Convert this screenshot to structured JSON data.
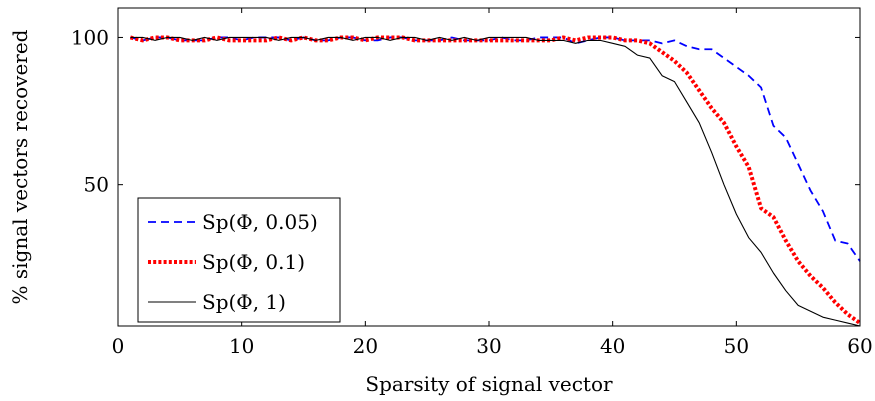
{
  "chart_data": {
    "type": "line",
    "xlabel": "Sparsity of signal vector",
    "ylabel": "% signal vectors recovered",
    "xlim": [
      0,
      60
    ],
    "ylim": [
      2,
      110
    ],
    "xticks": [
      0,
      10,
      20,
      30,
      40,
      50,
      60
    ],
    "yticks": [
      50,
      100
    ],
    "grid": false,
    "legend_position": "bottom-left",
    "series": [
      {
        "name": "Sp(Φ, 0.05)",
        "color": "#0000ff",
        "style": "dashed",
        "x": [
          1,
          2,
          3,
          4,
          5,
          6,
          7,
          8,
          9,
          10,
          11,
          12,
          13,
          14,
          15,
          16,
          17,
          18,
          19,
          20,
          21,
          22,
          23,
          24,
          25,
          26,
          27,
          28,
          29,
          30,
          31,
          32,
          33,
          34,
          35,
          36,
          37,
          38,
          39,
          40,
          41,
          42,
          43,
          44,
          45,
          46,
          47,
          48,
          49,
          50,
          51,
          52,
          53,
          54,
          55,
          56,
          57,
          58,
          59,
          60
        ],
        "y": [
          100,
          99,
          100,
          100,
          99,
          99,
          99,
          100,
          100,
          99,
          100,
          100,
          100,
          99,
          100,
          99,
          99,
          100,
          100,
          99,
          99,
          100,
          100,
          99,
          99,
          99,
          100,
          99,
          99,
          99,
          100,
          99,
          99,
          100,
          100,
          100,
          98,
          99,
          100,
          100,
          99,
          99,
          99,
          98,
          99,
          97,
          96,
          96,
          93,
          90,
          87,
          83,
          70,
          66,
          57,
          48,
          41,
          31,
          30,
          24
        ]
      },
      {
        "name": "Sp(Φ, 0.1)",
        "color": "#ff0000",
        "style": "dotted",
        "x": [
          1,
          2,
          3,
          4,
          5,
          6,
          7,
          8,
          9,
          10,
          11,
          12,
          13,
          14,
          15,
          16,
          17,
          18,
          19,
          20,
          21,
          22,
          23,
          24,
          25,
          26,
          27,
          28,
          29,
          30,
          31,
          32,
          33,
          34,
          35,
          36,
          37,
          38,
          39,
          40,
          41,
          42,
          43,
          44,
          45,
          46,
          47,
          48,
          49,
          50,
          51,
          52,
          53,
          54,
          55,
          56,
          57,
          58,
          59,
          60
        ],
        "y": [
          100,
          99,
          100,
          100,
          99,
          99,
          99,
          100,
          99,
          99,
          99,
          99,
          100,
          99,
          100,
          99,
          99,
          100,
          100,
          99,
          100,
          100,
          100,
          99,
          99,
          99,
          99,
          99,
          99,
          99,
          99,
          99,
          99,
          99,
          99,
          100,
          99,
          100,
          100,
          100,
          99,
          99,
          98,
          95,
          92,
          88,
          82,
          76,
          71,
          63,
          56,
          42,
          39,
          31,
          24,
          19,
          15,
          10,
          6,
          3
        ]
      },
      {
        "name": "Sp(Φ, 1)",
        "color": "#000000",
        "style": "solid",
        "x": [
          1,
          2,
          3,
          4,
          5,
          6,
          7,
          8,
          9,
          10,
          11,
          12,
          13,
          14,
          15,
          16,
          17,
          18,
          19,
          20,
          21,
          22,
          23,
          24,
          25,
          26,
          27,
          28,
          29,
          30,
          31,
          32,
          33,
          34,
          35,
          36,
          37,
          38,
          39,
          40,
          41,
          42,
          43,
          44,
          45,
          46,
          47,
          48,
          49,
          50,
          51,
          52,
          53,
          54,
          55,
          56,
          57,
          58,
          59,
          60
        ],
        "y": [
          100,
          100,
          99,
          100,
          100,
          99,
          100,
          99,
          100,
          100,
          100,
          100,
          99,
          100,
          100,
          99,
          100,
          100,
          99,
          100,
          100,
          99,
          100,
          100,
          99,
          100,
          99,
          100,
          99,
          100,
          100,
          100,
          100,
          99,
          99,
          99,
          98,
          99,
          99,
          98,
          97,
          94,
          93,
          87,
          85,
          78,
          71,
          61,
          50,
          40,
          32,
          27,
          20,
          14,
          9,
          7,
          5,
          4,
          3,
          2
        ]
      }
    ]
  }
}
